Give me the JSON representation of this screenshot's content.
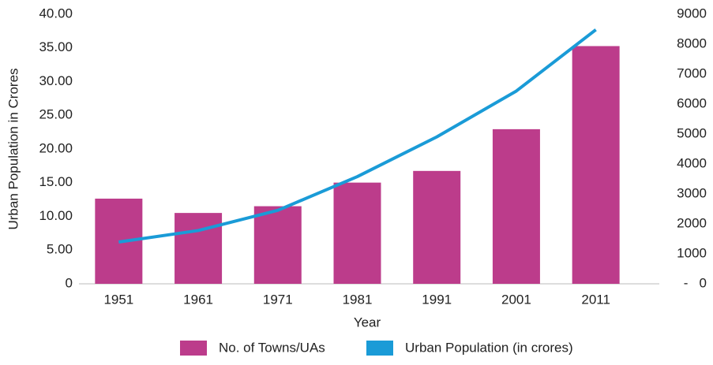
{
  "chart_data": {
    "type": "bar_line",
    "categories": [
      "1951",
      "1961",
      "1971",
      "1981",
      "1991",
      "2001",
      "2011"
    ],
    "series": [
      {
        "name": "No. of Towns/UAs",
        "type": "bar",
        "axis": "y2",
        "color": "#bc3c8b",
        "values": [
          2843,
          2365,
          2590,
          3378,
          3768,
          5161,
          7935
        ]
      },
      {
        "name": "Urban Population (in crores)",
        "type": "line",
        "color": "#1a9bd7",
        "values": [
          6.2,
          7.9,
          10.9,
          15.9,
          21.8,
          28.6,
          37.7
        ]
      }
    ],
    "x_label": "Year",
    "y_label": "Urban Population in Crores",
    "ylim": [
      0,
      40
    ],
    "yticks": [
      0,
      {
        "value": 5,
        "label": "5.00"
      },
      {
        "value": 10,
        "label": "10.00"
      },
      {
        "value": 15,
        "label": "15.00"
      },
      {
        "value": 20,
        "label": "20.00"
      },
      {
        "value": 25,
        "label": "25.00"
      },
      {
        "value": 30,
        "label": "30.00"
      },
      {
        "value": 35,
        "label": "35.00"
      },
      {
        "value": 40,
        "label": "40.00"
      }
    ],
    "y2lim": [
      0,
      9000
    ],
    "y2ticks": [
      {
        "value": 0,
        "label": "-   0"
      },
      1000,
      2000,
      3000,
      4000,
      5000,
      6000,
      7000,
      8000,
      9000
    ],
    "legend": "bottom"
  }
}
